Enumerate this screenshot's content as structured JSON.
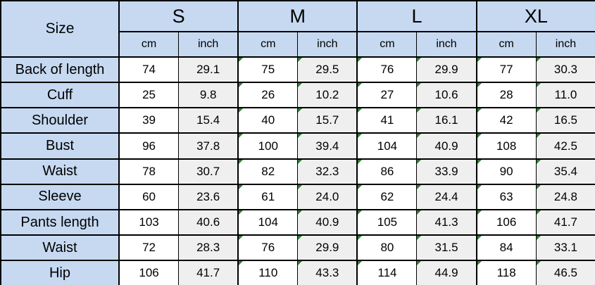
{
  "chart_data": {
    "type": "table",
    "corner_header": "Size",
    "size_groups": [
      "S",
      "M",
      "L",
      "XL"
    ],
    "unit_subheaders": [
      "cm",
      "inch"
    ],
    "value_column_order": [
      "S cm",
      "S inch",
      "M cm",
      "M inch",
      "L cm",
      "L inch",
      "XL cm",
      "XL inch"
    ],
    "rows": [
      {
        "label": "Back of length",
        "values": [
          "74",
          "29.1",
          "75",
          "29.5",
          "76",
          "29.9",
          "77",
          "30.3"
        ]
      },
      {
        "label": "Cuff",
        "values": [
          "25",
          "9.8",
          "26",
          "10.2",
          "27",
          "10.6",
          "28",
          "11.0"
        ]
      },
      {
        "label": "Shoulder",
        "values": [
          "39",
          "15.4",
          "40",
          "15.7",
          "41",
          "16.1",
          "42",
          "16.5"
        ]
      },
      {
        "label": "Bust",
        "values": [
          "96",
          "37.8",
          "100",
          "39.4",
          "104",
          "40.9",
          "108",
          "42.5"
        ]
      },
      {
        "label": "Waist",
        "values": [
          "78",
          "30.7",
          "82",
          "32.3",
          "86",
          "33.9",
          "90",
          "35.4"
        ]
      },
      {
        "label": "Sleeve",
        "values": [
          "60",
          "23.6",
          "61",
          "24.0",
          "62",
          "24.4",
          "63",
          "24.8"
        ]
      },
      {
        "label": "Pants length",
        "values": [
          "103",
          "40.6",
          "104",
          "40.9",
          "105",
          "41.3",
          "106",
          "41.7"
        ]
      },
      {
        "label": "Waist",
        "values": [
          "72",
          "28.3",
          "76",
          "29.9",
          "80",
          "31.5",
          "84",
          "33.1"
        ]
      },
      {
        "label": "Hip",
        "values": [
          "106",
          "41.7",
          "110",
          "43.3",
          "114",
          "44.9",
          "118",
          "46.5"
        ]
      }
    ],
    "error_indicator_cells": "all M, L and XL data cells have a green top-left corner triangle; S column cells have none",
    "layout": {
      "grid": true,
      "header_fill_spans": "size row and unit row"
    }
  },
  "colors": {
    "header_fill": "#c6d9f1",
    "cm_column_fill": "#ffffff",
    "inch_column_fill": "#efefef",
    "grid_border": "#000000",
    "cropped_edge_gridline": "#c2c2c2",
    "error_indicator_green": "#2e7d32",
    "text": "#000000"
  },
  "icons": {
    "error_indicator_triangle": "css right-triangle filling top-left cell corner"
  }
}
